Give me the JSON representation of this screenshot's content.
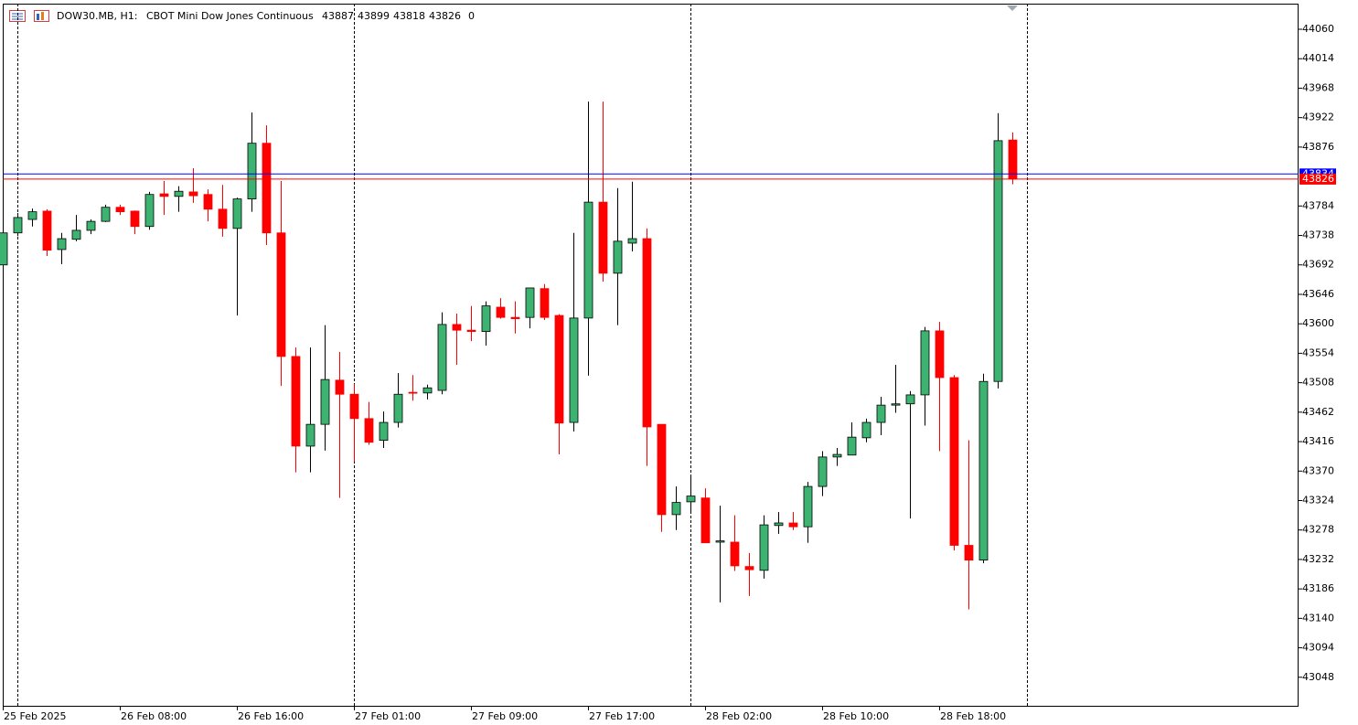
{
  "chart_data": {
    "type": "candlestick",
    "symbol": "DOW30.MB, H1:",
    "description": "CBOT Mini Dow Jones Continuous",
    "volume": 0,
    "categories": [
      "25 Feb 2025",
      null,
      null,
      null,
      null,
      null,
      null,
      null,
      "26 Feb 08:00",
      null,
      null,
      null,
      null,
      null,
      null,
      null,
      "26 Feb 16:00",
      null,
      null,
      null,
      null,
      null,
      null,
      null,
      "27 Feb 01:00",
      null,
      null,
      null,
      null,
      null,
      null,
      null,
      "27 Feb 09:00",
      null,
      null,
      null,
      null,
      null,
      null,
      null,
      "27 Feb 17:00",
      null,
      null,
      null,
      null,
      null,
      null,
      null,
      "28 Feb 02:00",
      null,
      null,
      null,
      null,
      null,
      null,
      null,
      "28 Feb 10:00",
      null,
      null,
      null,
      null,
      null,
      null,
      null,
      "28 Feb 18:00",
      null,
      null,
      null,
      null,
      null
    ],
    "open": [
      43692,
      43742,
      43763,
      43776,
      43716,
      43732,
      43746,
      43760,
      43782,
      43776,
      43752,
      43803,
      43799,
      43806,
      43802,
      43779,
      43749,
      43795,
      43882,
      43742,
      43549,
      43409,
      43443,
      43512,
      43490,
      43452,
      43418,
      43446,
      43493,
      43492,
      43496,
      43599,
      43590,
      43588,
      43626,
      43610,
      43610,
      43655,
      43613,
      43446,
      43609,
      43790,
      43679,
      43726,
      43733,
      43443,
      43302,
      43322,
      43328,
      43259,
      43259,
      43221,
      43215,
      43285,
      43289,
      43283,
      43346,
      43392,
      43395,
      43422,
      43446,
      43473,
      43475,
      43489,
      43589,
      43516,
      43254,
      43231,
      43510,
      43887
    ],
    "high": [
      43744,
      43773,
      43780,
      43779,
      43742,
      43770,
      43763,
      43786,
      43786,
      43777,
      43806,
      43823,
      43815,
      43843,
      43810,
      43817,
      43797,
      43930,
      43910,
      43823,
      43563,
      43563,
      43598,
      43556,
      43506,
      43478,
      43463,
      43523,
      43520,
      43505,
      43618,
      43616,
      43628,
      43635,
      43640,
      43635,
      43656,
      43662,
      43615,
      43742,
      43947,
      43947,
      43812,
      43822,
      43749,
      43443,
      43346,
      43363,
      43343,
      43316,
      43301,
      43242,
      43301,
      43306,
      43306,
      43353,
      43401,
      43406,
      43446,
      43452,
      43486,
      43536,
      43495,
      43595,
      43603,
      43520,
      43418,
      43522,
      43929,
      43899
    ],
    "low": [
      43692,
      43737,
      43752,
      43706,
      43693,
      43729,
      43740,
      43759,
      43770,
      43740,
      43747,
      43770,
      43775,
      43789,
      43760,
      43736,
      43613,
      43775,
      43723,
      43503,
      43368,
      43368,
      43402,
      43328,
      43385,
      43411,
      43406,
      43438,
      43480,
      43482,
      43490,
      43536,
      43573,
      43566,
      43608,
      43585,
      43593,
      43606,
      43396,
      43432,
      43519,
      43666,
      43598,
      43713,
      43378,
      43275,
      43278,
      43306,
      43258,
      43165,
      43214,
      43175,
      43202,
      43272,
      43278,
      43258,
      43331,
      43378,
      43395,
      43415,
      43426,
      43461,
      43296,
      43441,
      43401,
      43246,
      43154,
      43226,
      43499,
      43818
    ],
    "close": [
      43742,
      43766,
      43775,
      43715,
      43733,
      43746,
      43760,
      43782,
      43775,
      43752,
      43802,
      43799,
      43807,
      43800,
      43779,
      43749,
      43795,
      43882,
      43742,
      43549,
      43409,
      43443,
      43513,
      43490,
      43452,
      43415,
      43446,
      43490,
      43492,
      43500,
      43599,
      43590,
      43588,
      43628,
      43610,
      43608,
      43656,
      43610,
      43445,
      43609,
      43790,
      43679,
      43729,
      43733,
      43439,
      43302,
      43321,
      43331,
      43258,
      43261,
      43222,
      43216,
      43286,
      43289,
      43283,
      43346,
      43392,
      43396,
      43423,
      43446,
      43473,
      43475,
      43489,
      43589,
      43516,
      43254,
      43231,
      43510,
      43886,
      43826
    ],
    "up_color": "#3cb371",
    "down_color": "#ff0000",
    "ylim": [
      43002,
      44100
    ],
    "yticks": [
      44060,
      44014,
      43968,
      43922,
      43876,
      43784,
      43738,
      43692,
      43646,
      43600,
      43554,
      43508,
      43462,
      43416,
      43370,
      43324,
      43278,
      43232,
      43186,
      43140,
      43094,
      43048
    ],
    "price_lines": [
      {
        "value": 43834,
        "color": "#0000ff"
      },
      {
        "value": 43826,
        "color": "#ff0000"
      }
    ],
    "period_separators": [
      1,
      24,
      47,
      70
    ]
  }
}
